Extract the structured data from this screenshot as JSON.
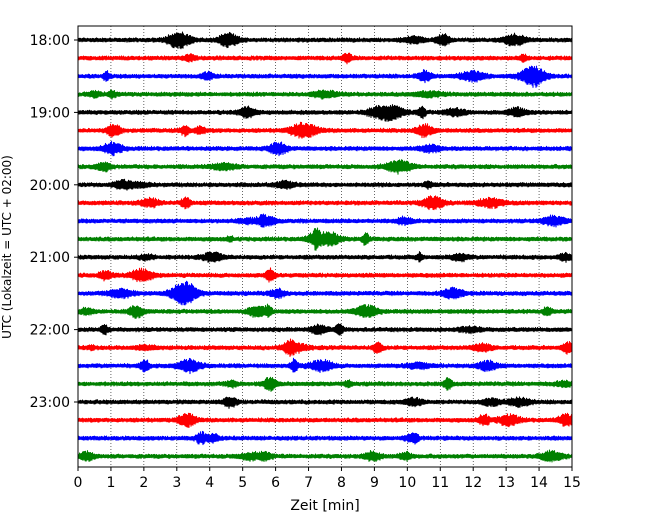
{
  "chart_data": {
    "type": "line",
    "title": "",
    "xlabel": "Zeit  [min]",
    "ylabel": "UTC (Lokalzeit = UTC + 02:00)",
    "xlim": [
      0,
      15
    ],
    "x_ticks": [
      0,
      1,
      2,
      3,
      4,
      5,
      6,
      7,
      8,
      9,
      10,
      11,
      12,
      13,
      14,
      15
    ],
    "y_tick_labels": [
      "18:00",
      "19:00",
      "20:00",
      "21:00",
      "22:00",
      "23:00"
    ],
    "y_tick_rows": [
      0,
      4,
      8,
      12,
      16,
      20
    ],
    "vertical_grid": "dotted",
    "trace_colors": [
      "#000000",
      "#ff0000",
      "#0000ff",
      "#008000"
    ],
    "traces": [
      {
        "start": "18:00",
        "color": "#000000"
      },
      {
        "start": "18:15",
        "color": "#ff0000"
      },
      {
        "start": "18:30",
        "color": "#0000ff"
      },
      {
        "start": "18:45",
        "color": "#008000"
      },
      {
        "start": "19:00",
        "color": "#000000"
      },
      {
        "start": "19:15",
        "color": "#ff0000"
      },
      {
        "start": "19:30",
        "color": "#0000ff"
      },
      {
        "start": "19:45",
        "color": "#008000"
      },
      {
        "start": "20:00",
        "color": "#000000"
      },
      {
        "start": "20:15",
        "color": "#ff0000"
      },
      {
        "start": "20:30",
        "color": "#0000ff"
      },
      {
        "start": "20:45",
        "color": "#008000"
      },
      {
        "start": "21:00",
        "color": "#000000"
      },
      {
        "start": "21:15",
        "color": "#ff0000"
      },
      {
        "start": "21:30",
        "color": "#0000ff"
      },
      {
        "start": "21:45",
        "color": "#008000"
      },
      {
        "start": "22:00",
        "color": "#000000"
      },
      {
        "start": "22:15",
        "color": "#ff0000"
      },
      {
        "start": "22:30",
        "color": "#0000ff"
      },
      {
        "start": "22:45",
        "color": "#008000"
      },
      {
        "start": "23:00",
        "color": "#000000"
      },
      {
        "start": "23:15",
        "color": "#ff0000"
      },
      {
        "start": "23:30",
        "color": "#0000ff"
      },
      {
        "start": "23:45",
        "color": "#008000"
      }
    ]
  }
}
